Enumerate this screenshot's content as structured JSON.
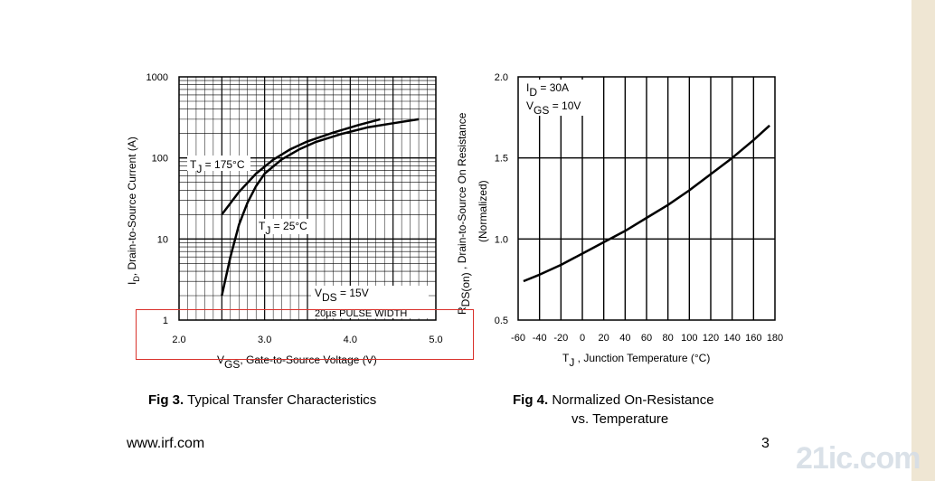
{
  "chart_data": [
    {
      "type": "line",
      "y_scale": "log",
      "xlim": [
        2.0,
        5.0
      ],
      "ylim": [
        1,
        1000
      ],
      "x_ticks": [
        "2.0",
        "3.0",
        "4.0",
        "5.0"
      ],
      "y_ticks": [
        "1",
        "10",
        "100",
        "1000"
      ],
      "xlabel_main": "V",
      "xlabel_sub": "GS",
      "xlabel_rest": ", Gate-to-Source Voltage (V)",
      "ylabel_main": "I",
      "ylabel_sub": "D",
      "ylabel_rest": ", Drain-to-Source Current  (A)",
      "series": [
        {
          "name_main": "T",
          "name_sub": "J",
          "name_rest": " = 175°C",
          "x": [
            2.5,
            2.7,
            2.9,
            3.1,
            3.3,
            3.5,
            3.8,
            4.1,
            4.35
          ],
          "y": [
            20,
            38,
            64,
            95,
            128,
            160,
            205,
            255,
            300
          ]
        },
        {
          "name_main": "T",
          "name_sub": "J",
          "name_rest": " = 25°C",
          "x": [
            2.5,
            2.6,
            2.7,
            2.8,
            2.9,
            3.0,
            3.2,
            3.4,
            3.6,
            3.9,
            4.2,
            4.5,
            4.8
          ],
          "y": [
            2,
            6,
            15,
            28,
            45,
            64,
            96,
            127,
            158,
            198,
            238,
            268,
            300
          ]
        }
      ],
      "annotation": {
        "vds_main": "V",
        "vds_sub": "DS",
        "vds_rest": " = 15V",
        "pulse": "20µs PULSE WIDTH"
      },
      "caption_bold": "Fig 3.",
      "caption": "Typical Transfer Characteristics"
    },
    {
      "type": "line",
      "xlim": [
        -60,
        180
      ],
      "ylim": [
        0.5,
        2.0
      ],
      "x_ticks": [
        "-60",
        "-40",
        "-20",
        "0",
        "20",
        "40",
        "60",
        "80",
        "100",
        "120",
        "140",
        "160",
        "180"
      ],
      "y_ticks": [
        "0.5",
        "1.0",
        "1.5",
        "2.0"
      ],
      "xlabel_main": "T",
      "xlabel_sub": "J",
      "xlabel_rest": " , Junction Temperature (°C)",
      "ylabel_main": "R",
      "ylabel_sub": "DS(on)",
      "ylabel_rest": " , Drain-to-Source On Resistance",
      "ylabel_line2": "(Normalized)",
      "series": [
        {
          "x": [
            -55,
            -40,
            -20,
            0,
            20,
            40,
            60,
            80,
            100,
            120,
            140,
            160,
            175
          ],
          "y": [
            0.74,
            0.78,
            0.84,
            0.91,
            0.98,
            1.05,
            1.13,
            1.21,
            1.3,
            1.4,
            1.5,
            1.61,
            1.7
          ]
        }
      ],
      "legend_lines": [
        {
          "main": "I",
          "sub": "D",
          "rest": " = 30A"
        },
        {
          "main": "V",
          "sub": "GS",
          "rest": " = 10V"
        }
      ],
      "caption_bold": "Fig 4.",
      "caption": "Normalized On-Resistance",
      "caption_line2": "vs. Temperature"
    }
  ],
  "footer": {
    "website": "www.irf.com",
    "page_number": "3"
  },
  "watermark_text": "21ic.com"
}
